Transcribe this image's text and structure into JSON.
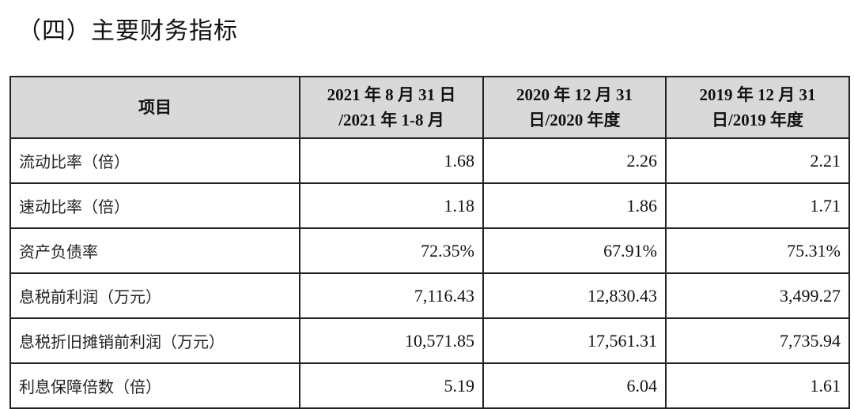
{
  "title": "（四）主要财务指标",
  "table": {
    "headers": [
      "项目",
      "2021年8月31日/2021年1-8月",
      "2020年12月31日/2020年度",
      "2019年12月31日/2019年度"
    ],
    "header_lines": [
      [
        "项目"
      ],
      [
        "2021 年 8 月 31 日",
        "/2021 年 1-8 月"
      ],
      [
        "2020 年 12 月 31",
        "日/2020 年度"
      ],
      [
        "2019 年 12 月 31",
        "日/2019 年度"
      ]
    ],
    "header_bg": "#d9d9d9",
    "rows": [
      {
        "label": "流动比率（倍）",
        "values": [
          "1.68",
          "2.26",
          "2.21"
        ]
      },
      {
        "label": "速动比率（倍）",
        "values": [
          "1.18",
          "1.86",
          "1.71"
        ]
      },
      {
        "label": "资产负债率",
        "values": [
          "72.35%",
          "67.91%",
          "75.31%"
        ]
      },
      {
        "label": "息税前利润（万元）",
        "values": [
          "7,116.43",
          "12,830.43",
          "3,499.27"
        ]
      },
      {
        "label": "息税折旧摊销前利润（万元）",
        "values": [
          "10,571.85",
          "17,561.31",
          "7,735.94"
        ]
      },
      {
        "label": "利息保障倍数（倍）",
        "values": [
          "5.19",
          "6.04",
          "1.61"
        ]
      }
    ]
  }
}
